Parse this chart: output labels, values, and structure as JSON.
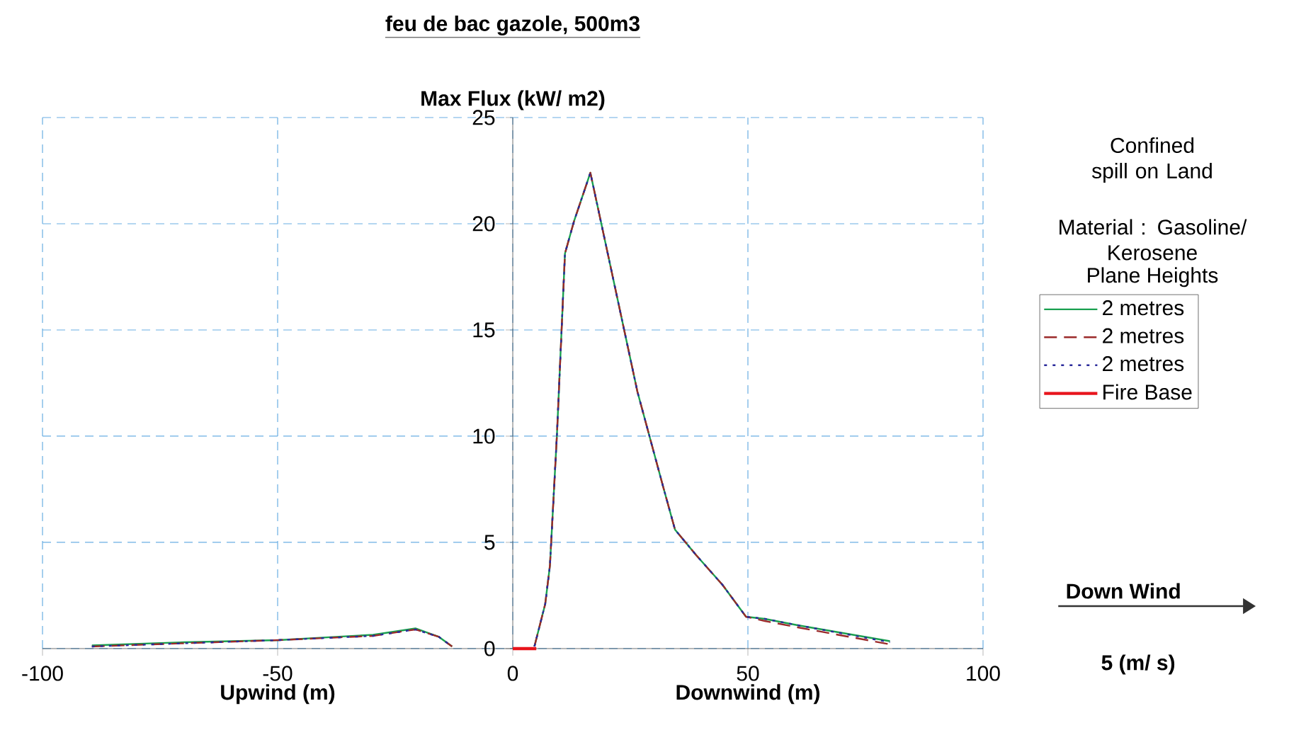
{
  "chart_data": {
    "type": "line",
    "title": "feu de bac gazole, 500m3",
    "ylabel": "Max Flux (kW/ m2)",
    "legend_title": "Plane Heights",
    "annotations": [
      "Upwind (m)",
      "Downwind (m)",
      "Confined spill on Land",
      "Material : Gasoline/ Kerosene",
      "Down Wind",
      "5  (m/ s)"
    ],
    "xlim": [
      -100,
      100
    ],
    "ylim": [
      0,
      25
    ],
    "xticks": [
      -100,
      -50,
      0,
      50,
      100
    ],
    "yticks": [
      0,
      5,
      10,
      15,
      20,
      25
    ],
    "grid": true,
    "legend": "right",
    "marker": "none",
    "series": [
      {
        "name": "2  metres",
        "color": "#1aa050",
        "line_style": "solid",
        "x": [
          -89.5,
          -69.9,
          -49.8,
          -29.7,
          -20.7,
          -15.7,
          -12.9,
          null,
          4.6,
          6.9,
          7.9,
          9.4,
          11.1,
          13,
          16.5,
          20,
          26.5,
          32,
          34.5,
          39,
          44.6,
          49.6,
          53.6,
          60.6,
          80.2
        ],
        "values": [
          0.15,
          0.3,
          0.4,
          0.65,
          0.95,
          0.55,
          0.1,
          null,
          0.1,
          2.1,
          3.9,
          10.1,
          18.6,
          20.1,
          22.4,
          18.8,
          12.1,
          7.6,
          5.6,
          4.4,
          3,
          1.5,
          1.4,
          1.1,
          0.35
        ]
      },
      {
        "name": "2  metres",
        "color": "#9b2a2a",
        "line_style": "dashed",
        "x": [
          -89.5,
          -69.9,
          -49.8,
          -29.7,
          -20.7,
          -15.7,
          -12.9,
          null,
          4.6,
          6.9,
          7.9,
          9.4,
          11.1,
          13,
          16.5,
          20,
          26.5,
          32,
          34.5,
          39,
          44.6,
          49.6,
          53.6,
          60.6,
          80.2
        ],
        "values": [
          0.1,
          0.25,
          0.4,
          0.6,
          0.9,
          0.55,
          0.1,
          null,
          0.1,
          2.1,
          3.9,
          10.1,
          18.6,
          20.1,
          22.4,
          18.8,
          12.1,
          7.6,
          5.6,
          4.4,
          3,
          1.5,
          1.3,
          1,
          0.2
        ]
      },
      {
        "name": "2  metres",
        "color": "#2a2a9b",
        "line_style": "dotted",
        "x": [
          -89.5,
          -69.9,
          -49.8,
          -29.7,
          -20.7,
          -15.7,
          -12.9,
          null,
          4.6,
          6.9,
          7.9,
          9.4,
          11.1,
          13,
          16.5,
          20,
          26.5,
          32,
          34.5,
          39,
          44.6,
          49.6,
          53.6,
          60.6,
          80.2
        ],
        "values": [
          0.1,
          0.25,
          0.4,
          0.6,
          0.9,
          0.55,
          0.1,
          null,
          0.1,
          2.1,
          3.9,
          10.1,
          18.6,
          20.1,
          22.4,
          18.8,
          12.1,
          7.6,
          5.6,
          4.4,
          3,
          1.5,
          1.4,
          1.1,
          0.3
        ]
      },
      {
        "name": "Fire Base",
        "color": "#e8141c",
        "line_style": "solid",
        "x": [
          0,
          5
        ],
        "values": [
          0,
          0
        ]
      }
    ]
  }
}
